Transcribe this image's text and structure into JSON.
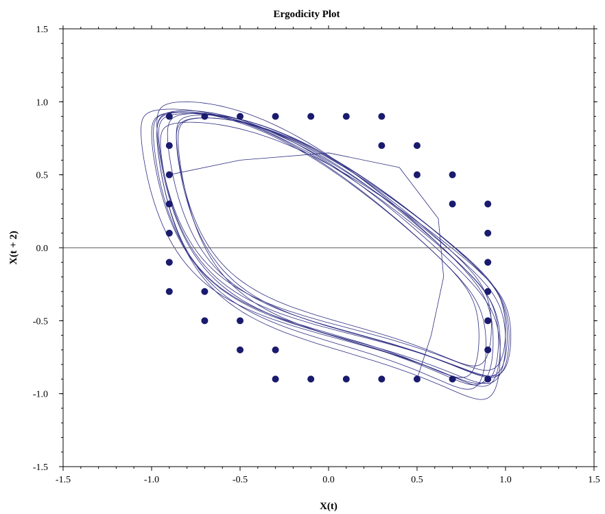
{
  "chart_data": {
    "type": "scatter",
    "title": "Ergodicity Plot",
    "xlabel": "X(t)",
    "ylabel": "X(t + 2)",
    "xlim": [
      -1.5,
      1.5
    ],
    "ylim": [
      -1.5,
      1.5
    ],
    "x_ticks": [
      -1.5,
      -1.0,
      -0.5,
      0.0,
      0.5,
      1.0,
      1.5
    ],
    "y_ticks": [
      -1.5,
      -1.0,
      -0.5,
      0.0,
      0.5,
      1.0,
      1.5
    ],
    "x_tick_labels": [
      "-1.5",
      "-1.0",
      "-0.5",
      "0.0",
      "0.5",
      "1.0",
      "1.5"
    ],
    "y_tick_labels": [
      "-1.5",
      "-1.0",
      "-0.5",
      "0.0",
      "0.5",
      "1.0",
      "1.5"
    ],
    "grid": false,
    "reference_line_y": 0.0,
    "colors": {
      "series": "#1a1a6e",
      "curve": "#2a2a80",
      "axes": "#000000",
      "zero_line": "#555555"
    },
    "series": [
      {
        "values": [
          [
            -0.9,
            0.9
          ],
          [
            -0.7,
            0.9
          ],
          [
            -0.5,
            0.9
          ],
          [
            -0.3,
            0.9
          ],
          [
            -0.1,
            0.9
          ],
          [
            0.1,
            0.9
          ],
          [
            0.3,
            0.9
          ],
          [
            -0.9,
            0.7
          ],
          [
            0.3,
            0.7
          ],
          [
            0.5,
            0.7
          ],
          [
            -0.9,
            0.5
          ],
          [
            0.5,
            0.5
          ],
          [
            0.7,
            0.5
          ],
          [
            -0.9,
            0.3
          ],
          [
            0.7,
            0.3
          ],
          [
            0.9,
            0.3
          ],
          [
            -0.9,
            0.1
          ],
          [
            0.9,
            0.1
          ],
          [
            -0.9,
            -0.1
          ],
          [
            0.9,
            -0.1
          ],
          [
            -0.9,
            -0.3
          ],
          [
            -0.7,
            -0.3
          ],
          [
            0.9,
            -0.3
          ],
          [
            -0.7,
            -0.5
          ],
          [
            -0.5,
            -0.5
          ],
          [
            0.9,
            -0.5
          ],
          [
            -0.5,
            -0.7
          ],
          [
            -0.3,
            -0.7
          ],
          [
            0.9,
            -0.7
          ],
          [
            -0.3,
            -0.9
          ],
          [
            -0.1,
            -0.9
          ],
          [
            0.1,
            -0.9
          ],
          [
            0.3,
            -0.9
          ],
          [
            0.5,
            -0.9
          ],
          [
            0.7,
            -0.9
          ],
          [
            0.9,
            -0.9
          ]
        ]
      }
    ]
  }
}
